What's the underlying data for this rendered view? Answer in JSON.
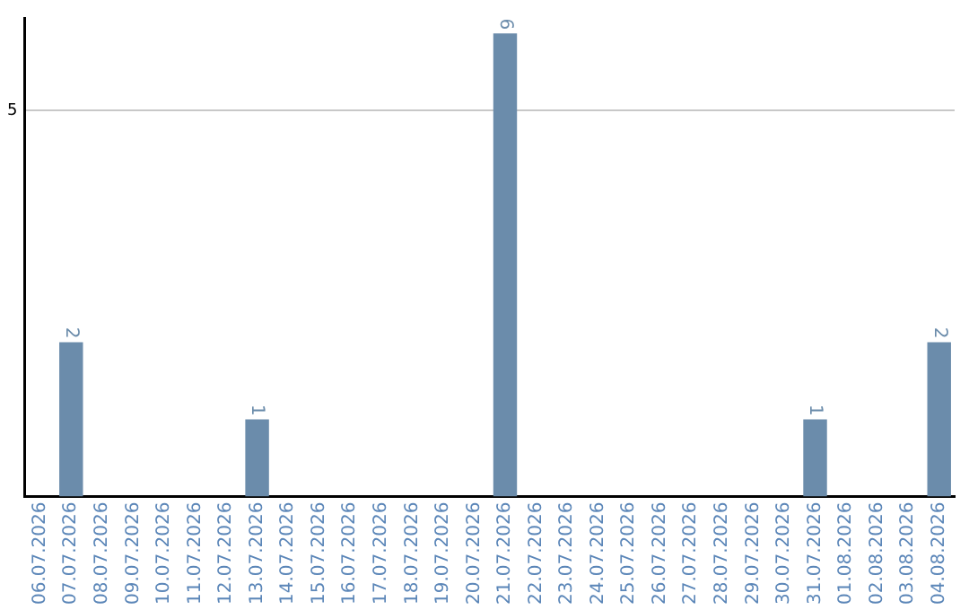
{
  "chart_data": {
    "type": "bar",
    "categories": [
      "06.07.2026",
      "07.07.2026",
      "08.07.2026",
      "09.07.2026",
      "10.07.2026",
      "11.07.2026",
      "12.07.2026",
      "13.07.2026",
      "14.07.2026",
      "15.07.2026",
      "16.07.2026",
      "17.07.2026",
      "18.07.2026",
      "19.07.2026",
      "20.07.2026",
      "21.07.2026",
      "22.07.2026",
      "23.07.2026",
      "24.07.2026",
      "25.07.2026",
      "26.07.2026",
      "27.07.2026",
      "28.07.2026",
      "29.07.2026",
      "30.07.2026",
      "31.07.2026",
      "01.08.2026",
      "02.08.2026",
      "03.08.2026",
      "04.08.2026"
    ],
    "values": [
      0,
      2,
      0,
      0,
      0,
      0,
      0,
      1,
      0,
      0,
      0,
      0,
      0,
      0,
      0,
      6,
      0,
      0,
      0,
      0,
      0,
      0,
      0,
      0,
      0,
      1,
      0,
      0,
      0,
      2
    ],
    "value_labels": [
      null,
      "2",
      null,
      null,
      null,
      null,
      null,
      "1",
      null,
      null,
      null,
      null,
      null,
      null,
      null,
      "6",
      null,
      null,
      null,
      null,
      null,
      null,
      null,
      null,
      null,
      "1",
      null,
      null,
      null,
      "2"
    ],
    "color": "#6b8cab",
    "ylim": [
      0,
      6.2
    ],
    "yticks": [
      5
    ],
    "grid": "y",
    "legend": false
  }
}
